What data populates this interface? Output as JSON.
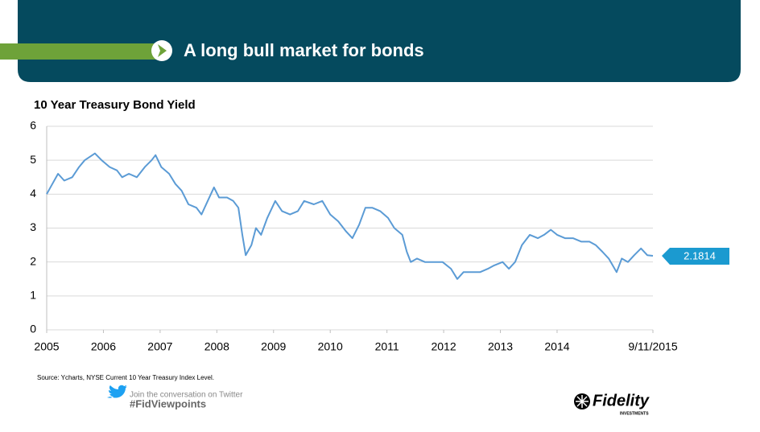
{
  "header": {
    "title": "A long bull market for bonds"
  },
  "chart_data": {
    "type": "line",
    "title": "10 Year  Treasury Bond Yield",
    "x": [
      2005.0,
      2005.1,
      2005.2,
      2005.31,
      2005.45,
      2005.57,
      2005.67,
      2005.85,
      2005.97,
      2006.11,
      2006.24,
      2006.33,
      2006.45,
      2006.59,
      2006.73,
      2006.85,
      2006.92,
      2007.02,
      2007.16,
      2007.27,
      2007.38,
      2007.5,
      2007.64,
      2007.73,
      2007.84,
      2007.95,
      2008.04,
      2008.18,
      2008.29,
      2008.38,
      2008.45,
      2008.51,
      2008.61,
      2008.69,
      2008.78,
      2008.89,
      2009.03,
      2009.15,
      2009.29,
      2009.43,
      2009.54,
      2009.71,
      2009.86,
      2010.0,
      2010.14,
      2010.28,
      2010.39,
      2010.51,
      2010.62,
      2010.74,
      2010.88,
      2011.02,
      2011.13,
      2011.27,
      2011.35,
      2011.42,
      2011.53,
      2011.67,
      2011.81,
      2011.98,
      2012.13,
      2012.24,
      2012.35,
      2012.5,
      2012.64,
      2012.78,
      2012.89,
      2013.04,
      2013.15,
      2013.26,
      2013.38,
      2013.52,
      2013.66,
      2013.77,
      2013.89,
      2014.0,
      2014.14,
      2014.28,
      2014.43,
      2014.57,
      2014.68,
      2014.8,
      2014.91,
      2015.05,
      2015.14,
      2015.25,
      2015.36,
      2015.48,
      2015.59,
      2015.69
    ],
    "series": [
      {
        "name": "10 Year Treasury Bond Yield",
        "color": "#5b9bd5",
        "values": [
          4.0,
          4.3,
          4.6,
          4.4,
          4.5,
          4.8,
          5.0,
          5.2,
          5.0,
          4.8,
          4.7,
          4.5,
          4.6,
          4.5,
          4.8,
          5.0,
          5.15,
          4.8,
          4.6,
          4.3,
          4.1,
          3.7,
          3.6,
          3.4,
          3.8,
          4.2,
          3.9,
          3.9,
          3.8,
          3.6,
          2.8,
          2.2,
          2.5,
          3.0,
          2.8,
          3.3,
          3.8,
          3.5,
          3.4,
          3.5,
          3.8,
          3.7,
          3.8,
          3.4,
          3.2,
          2.9,
          2.7,
          3.1,
          3.6,
          3.6,
          3.5,
          3.3,
          3.0,
          2.8,
          2.3,
          2.0,
          2.1,
          2.0,
          2.0,
          2.0,
          1.8,
          1.5,
          1.7,
          1.7,
          1.7,
          1.8,
          1.9,
          2.0,
          1.8,
          2.0,
          2.5,
          2.8,
          2.7,
          2.8,
          2.95,
          2.8,
          2.7,
          2.7,
          2.6,
          2.6,
          2.5,
          2.3,
          2.1,
          1.7,
          2.1,
          2.0,
          2.2,
          2.4,
          2.2,
          2.1814
        ]
      }
    ],
    "current_value": 2.1814,
    "xlim": [
      2005,
      2015.69
    ],
    "xticks": [
      2005,
      2006,
      2007,
      2008,
      2009,
      2010,
      2011,
      2012,
      2013,
      2014,
      {
        "value": 2015.69,
        "label": "9/11/2015"
      }
    ],
    "ylim": [
      0,
      6
    ],
    "yticks": [
      0,
      1,
      2,
      3,
      4,
      5,
      6
    ],
    "grid": true,
    "source": "Source: Ycharts, NYSE Current 10 Year Treasury Index Level."
  },
  "footer": {
    "twitter_prompt": "Join the conversation on Twitter",
    "hashtag": "#FidViewpoints",
    "logo": "Fidelity",
    "logo_sub": "INVESTMENTS"
  }
}
